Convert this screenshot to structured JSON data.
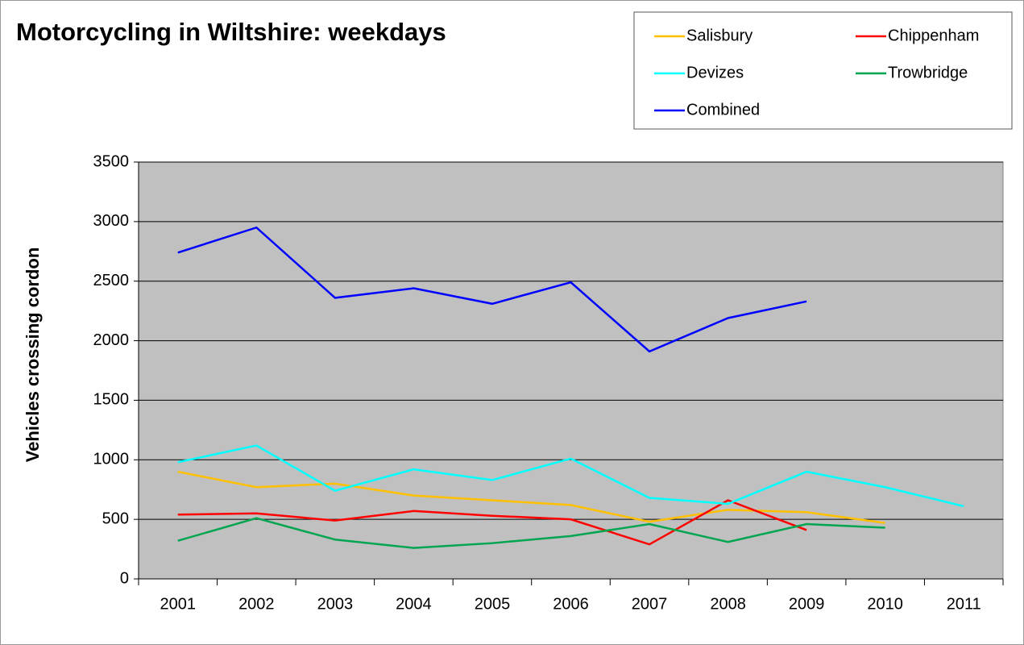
{
  "chart_data": {
    "type": "line",
    "title": "Motorcycling in Wiltshire: weekdays",
    "y_label": "Vehicles crossing cordon",
    "categories": [
      "2001",
      "2002",
      "2003",
      "2004",
      "2005",
      "2006",
      "2007",
      "2008",
      "2009",
      "2010",
      "2011"
    ],
    "series": [
      {
        "name": "Salisbury",
        "color": "#ffc000",
        "values": [
          900,
          770,
          800,
          700,
          660,
          620,
          480,
          580,
          560,
          470,
          null
        ]
      },
      {
        "name": "Chippenham",
        "color": "#ff0000",
        "values": [
          540,
          550,
          490,
          570,
          530,
          500,
          290,
          660,
          410,
          null,
          null
        ]
      },
      {
        "name": "Devizes",
        "color": "#00ffff",
        "values": [
          980,
          1120,
          740,
          920,
          830,
          1010,
          680,
          630,
          900,
          770,
          610
        ]
      },
      {
        "name": "Trowbridge",
        "color": "#00a550",
        "values": [
          320,
          510,
          330,
          260,
          300,
          360,
          460,
          310,
          460,
          430,
          null
        ]
      },
      {
        "name": "Combined",
        "color": "#0000ff",
        "values": [
          2740,
          2950,
          2360,
          2440,
          2310,
          2490,
          1910,
          2190,
          2330,
          null,
          null
        ]
      }
    ],
    "ylim": [
      0,
      3500
    ],
    "yticks": [
      0,
      500,
      1000,
      1500,
      2000,
      2500,
      3000,
      3500
    ],
    "grid": true,
    "plot_background": "#c0c0c0",
    "legend": "top-right"
  }
}
